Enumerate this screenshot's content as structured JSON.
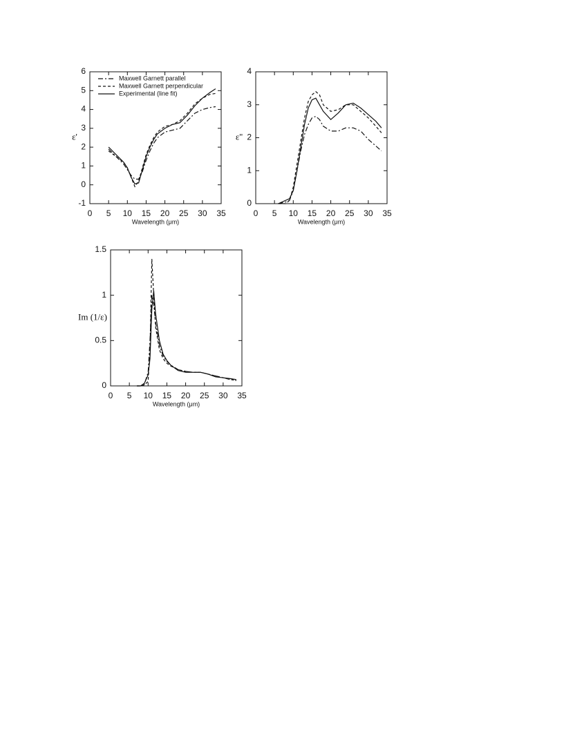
{
  "chart_data": [
    {
      "type": "line",
      "xlabel": "Wavelength (μm)",
      "ylabel": "ε'",
      "xlim": [
        0,
        35
      ],
      "xticks": [
        0,
        5,
        10,
        15,
        20,
        25,
        30,
        35
      ],
      "ylim": [
        -1,
        6
      ],
      "yticks": [
        -1,
        0,
        1,
        2,
        3,
        4,
        5,
        6
      ],
      "legend": "upper left",
      "x": [
        5,
        7,
        9,
        10,
        11,
        12,
        13,
        14,
        15,
        16,
        17,
        18,
        20,
        22,
        24,
        26,
        28,
        30,
        32,
        33.5
      ],
      "series": [
        {
          "name": "Maxwell Garnett parallel",
          "color": "#111111",
          "style": "dashdot",
          "values": [
            1.9,
            1.5,
            1.1,
            0.8,
            0.5,
            0.3,
            0.3,
            0.7,
            1.3,
            1.8,
            2.2,
            2.5,
            2.8,
            2.9,
            3.0,
            3.4,
            3.8,
            4.0,
            4.1,
            4.15
          ]
        },
        {
          "name": "Maxwell Garnett perpendicular",
          "color": "#111111",
          "style": "dashed",
          "values": [
            1.8,
            1.5,
            1.2,
            0.9,
            0.4,
            -0.1,
            0.2,
            0.9,
            1.6,
            2.1,
            2.5,
            2.8,
            3.1,
            3.2,
            3.4,
            3.8,
            4.3,
            4.6,
            4.8,
            4.85
          ]
        },
        {
          "name": "Experimental (line fit)",
          "color": "#111111",
          "style": "solid",
          "values": [
            2.0,
            1.6,
            1.2,
            0.9,
            0.4,
            0.05,
            0.1,
            0.8,
            1.5,
            2.0,
            2.4,
            2.7,
            3.0,
            3.2,
            3.3,
            3.7,
            4.2,
            4.6,
            4.9,
            5.1
          ]
        }
      ]
    },
    {
      "type": "line",
      "xlabel": "Wavelength (μm)",
      "ylabel": "ε''",
      "xlim": [
        0,
        35
      ],
      "xticks": [
        0,
        5,
        10,
        15,
        20,
        25,
        30,
        35
      ],
      "ylim": [
        0,
        4
      ],
      "yticks": [
        0,
        1,
        2,
        3,
        4
      ],
      "x": [
        6,
        8,
        9,
        10,
        11,
        12,
        13,
        14,
        15,
        16,
        17,
        18,
        20,
        22,
        24,
        26,
        28,
        30,
        32,
        33.5
      ],
      "series": [
        {
          "color": "#111111",
          "style": "dashdot",
          "values": [
            0,
            0.05,
            0.1,
            0.4,
            1.0,
            1.6,
            2.1,
            2.4,
            2.6,
            2.65,
            2.55,
            2.35,
            2.2,
            2.2,
            2.3,
            2.3,
            2.2,
            1.95,
            1.75,
            1.6
          ]
        },
        {
          "color": "#111111",
          "style": "dashed",
          "values": [
            0,
            0,
            0.1,
            0.5,
            1.2,
            1.9,
            2.6,
            3.1,
            3.3,
            3.4,
            3.3,
            3.0,
            2.8,
            2.85,
            3.0,
            3.0,
            2.8,
            2.6,
            2.35,
            2.15
          ]
        },
        {
          "color": "#111111",
          "style": "solid",
          "values": [
            0,
            0.1,
            0.15,
            0.4,
            1.0,
            1.7,
            2.4,
            2.9,
            3.15,
            3.2,
            3.0,
            2.8,
            2.55,
            2.75,
            3.0,
            3.05,
            2.9,
            2.7,
            2.5,
            2.3
          ]
        }
      ]
    },
    {
      "type": "line",
      "xlabel": "Wavelength (μm)",
      "ylabel": "Im (1/ε)",
      "xlim": [
        0,
        35
      ],
      "xticks": [
        0,
        5,
        10,
        15,
        20,
        25,
        30,
        35
      ],
      "ylim": [
        0,
        1.5
      ],
      "yticks": [
        0,
        0.5,
        1,
        1.5
      ],
      "x": [
        7,
        8,
        9,
        10,
        10.5,
        11,
        11.5,
        12,
        13,
        14,
        15,
        16,
        18,
        20,
        22,
        24,
        26,
        28,
        30,
        32,
        33.5
      ],
      "series": [
        {
          "color": "#111111",
          "style": "dashdot",
          "values": [
            0,
            0,
            0.02,
            0.15,
            0.5,
            1.0,
            0.9,
            0.7,
            0.45,
            0.33,
            0.27,
            0.23,
            0.18,
            0.16,
            0.15,
            0.15,
            0.13,
            0.11,
            0.09,
            0.07,
            0.06
          ]
        },
        {
          "color": "#111111",
          "style": "dashed",
          "values": [
            0,
            0,
            0.01,
            0.05,
            0.4,
            1.4,
            1.0,
            0.65,
            0.4,
            0.3,
            0.25,
            0.22,
            0.18,
            0.16,
            0.15,
            0.15,
            0.13,
            0.11,
            0.09,
            0.07,
            0.06
          ]
        },
        {
          "color": "#111111",
          "style": "solid",
          "values": [
            0,
            0,
            0.03,
            0.12,
            0.3,
            0.85,
            1.05,
            0.8,
            0.5,
            0.35,
            0.28,
            0.23,
            0.17,
            0.15,
            0.15,
            0.15,
            0.13,
            0.1,
            0.09,
            0.08,
            0.07
          ]
        }
      ]
    }
  ]
}
